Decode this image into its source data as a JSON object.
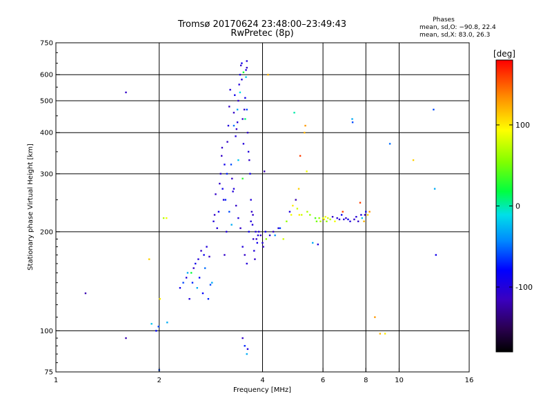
{
  "chart_data": {
    "type": "scatter",
    "title": "Tromsø 20170624 23:48:00–23:49:43",
    "subtitle": "RwPretec (8p)",
    "stats": {
      "heading": "Phases",
      "line1": "mean, sd,O: −90.8, 22.4",
      "line2": "mean, sd,X:  83.0, 26.3"
    },
    "xlabel": "Frequency [MHz]",
    "ylabel": "Stationary phase Virtual Height [km]",
    "x_scale": "log",
    "y_scale": "log",
    "xlim": [
      1,
      16
    ],
    "ylim": [
      75,
      750
    ],
    "x_ticks": [
      1,
      2,
      4,
      6,
      8,
      10,
      16
    ],
    "x_gridlines": [
      2,
      4,
      6,
      8,
      10
    ],
    "y_ticks": [
      75,
      100,
      200,
      300,
      400,
      500,
      600,
      750
    ],
    "y_gridlines": [
      100,
      200,
      300,
      400,
      500,
      600
    ],
    "grid": true,
    "colorbar": {
      "label": "[deg]",
      "range": [
        -180,
        180
      ],
      "ticks": [
        -100,
        0,
        100
      ],
      "colormap": "rainbow"
    },
    "points": [
      [
        1.6,
        530,
        -110
      ],
      [
        1.22,
        130,
        -120
      ],
      [
        1.6,
        95,
        -120
      ],
      [
        1.87,
        165,
        110
      ],
      [
        1.9,
        105,
        -20
      ],
      [
        1.96,
        100,
        -80
      ],
      [
        1.99,
        103,
        -60
      ],
      [
        2.0,
        76,
        -60
      ],
      [
        2.01,
        125,
        100
      ],
      [
        2.06,
        220,
        70
      ],
      [
        2.1,
        220,
        90
      ],
      [
        2.11,
        106,
        -30
      ],
      [
        2.3,
        135,
        -90
      ],
      [
        2.35,
        140,
        -60
      ],
      [
        2.4,
        145,
        -100
      ],
      [
        2.42,
        150,
        -30
      ],
      [
        2.45,
        125,
        -100
      ],
      [
        2.48,
        150,
        20
      ],
      [
        2.5,
        140,
        -70
      ],
      [
        2.52,
        155,
        -110
      ],
      [
        2.55,
        160,
        -90
      ],
      [
        2.58,
        135,
        -30
      ],
      [
        2.6,
        165,
        -100
      ],
      [
        2.62,
        145,
        -80
      ],
      [
        2.65,
        175,
        -110
      ],
      [
        2.68,
        130,
        -80
      ],
      [
        2.7,
        170,
        -90
      ],
      [
        2.72,
        155,
        -50
      ],
      [
        2.75,
        180,
        -100
      ],
      [
        2.78,
        125,
        -70
      ],
      [
        2.8,
        168,
        -110
      ],
      [
        2.82,
        138,
        -60
      ],
      [
        2.85,
        140,
        -30
      ],
      [
        2.88,
        215,
        -100
      ],
      [
        2.9,
        225,
        -110
      ],
      [
        2.92,
        260,
        -110
      ],
      [
        2.95,
        205,
        -100
      ],
      [
        2.98,
        230,
        -90
      ],
      [
        3.0,
        280,
        -110
      ],
      [
        3.02,
        300,
        -100
      ],
      [
        3.04,
        340,
        -110
      ],
      [
        3.06,
        270,
        -90
      ],
      [
        3.08,
        250,
        -100
      ],
      [
        3.1,
        170,
        -110
      ],
      [
        3.12,
        250,
        -70
      ],
      [
        3.14,
        200,
        -100
      ],
      [
        3.16,
        375,
        -110
      ],
      [
        3.18,
        420,
        -100
      ],
      [
        3.2,
        480,
        -110
      ],
      [
        3.22,
        540,
        -100
      ],
      [
        3.24,
        320,
        -60
      ],
      [
        3.26,
        290,
        -110
      ],
      [
        3.28,
        265,
        -100
      ],
      [
        3.3,
        460,
        -110
      ],
      [
        3.32,
        520,
        -90
      ],
      [
        3.34,
        390,
        -100
      ],
      [
        3.36,
        410,
        -110
      ],
      [
        3.38,
        430,
        -100
      ],
      [
        3.4,
        500,
        -110
      ],
      [
        3.42,
        560,
        -100
      ],
      [
        3.44,
        600,
        -90
      ],
      [
        3.46,
        640,
        -110
      ],
      [
        3.48,
        580,
        -100
      ],
      [
        3.5,
        440,
        -110
      ],
      [
        3.52,
        370,
        -100
      ],
      [
        3.54,
        470,
        -110
      ],
      [
        3.56,
        510,
        -90
      ],
      [
        3.58,
        620,
        -100
      ],
      [
        3.6,
        630,
        -110
      ],
      [
        3.62,
        400,
        -110
      ],
      [
        3.64,
        350,
        -100
      ],
      [
        3.66,
        330,
        -110
      ],
      [
        3.68,
        300,
        -90
      ],
      [
        3.7,
        250,
        -100
      ],
      [
        3.72,
        230,
        -110
      ],
      [
        3.74,
        210,
        -100
      ],
      [
        3.76,
        190,
        -110
      ],
      [
        3.78,
        175,
        -100
      ],
      [
        3.8,
        165,
        -110
      ],
      [
        3.82,
        200,
        -100
      ],
      [
        3.84,
        190,
        -110
      ],
      [
        3.86,
        185,
        -90
      ],
      [
        3.88,
        195,
        -100
      ],
      [
        3.3,
        270,
        -100
      ],
      [
        3.35,
        240,
        -110
      ],
      [
        3.4,
        220,
        -100
      ],
      [
        3.45,
        205,
        -110
      ],
      [
        3.5,
        180,
        -100
      ],
      [
        3.55,
        170,
        -110
      ],
      [
        3.6,
        160,
        -100
      ],
      [
        3.65,
        200,
        -90
      ],
      [
        3.7,
        215,
        -100
      ],
      [
        3.75,
        225,
        -110
      ],
      [
        3.2,
        230,
        -60
      ],
      [
        3.25,
        210,
        -30
      ],
      [
        3.15,
        300,
        -70
      ],
      [
        3.1,
        320,
        -90
      ],
      [
        3.05,
        360,
        -110
      ],
      [
        3.5,
        95,
        -110
      ],
      [
        3.55,
        90,
        -70
      ],
      [
        3.6,
        85,
        -30
      ],
      [
        3.62,
        88,
        -100
      ],
      [
        3.48,
        650,
        -90
      ],
      [
        3.6,
        660,
        -100
      ],
      [
        3.52,
        610,
        20
      ],
      [
        3.58,
        590,
        -20
      ],
      [
        3.44,
        530,
        -10
      ],
      [
        3.38,
        470,
        -30
      ],
      [
        3.3,
        420,
        -50
      ],
      [
        3.6,
        470,
        -60
      ],
      [
        3.56,
        440,
        10
      ],
      [
        3.5,
        290,
        30
      ],
      [
        3.4,
        330,
        -20
      ],
      [
        3.9,
        200,
        -100
      ],
      [
        3.95,
        195,
        -110
      ],
      [
        4.0,
        185,
        -100
      ],
      [
        4.02,
        180,
        -110
      ],
      [
        4.05,
        305,
        -120
      ],
      [
        4.08,
        200,
        -90
      ],
      [
        4.1,
        190,
        60
      ],
      [
        4.15,
        600,
        120
      ],
      [
        4.2,
        195,
        -100
      ],
      [
        4.3,
        200,
        -110
      ],
      [
        4.35,
        195,
        -40
      ],
      [
        4.45,
        205,
        -100
      ],
      [
        4.5,
        205,
        -60
      ],
      [
        4.6,
        190,
        80
      ],
      [
        4.7,
        215,
        60
      ],
      [
        4.8,
        230,
        -100
      ],
      [
        4.85,
        225,
        90
      ],
      [
        4.9,
        240,
        100
      ],
      [
        4.95,
        460,
        0
      ],
      [
        5.0,
        250,
        -120
      ],
      [
        5.05,
        235,
        80
      ],
      [
        5.1,
        270,
        110
      ],
      [
        5.12,
        225,
        100
      ],
      [
        5.15,
        340,
        160
      ],
      [
        5.2,
        225,
        80
      ],
      [
        5.3,
        400,
        120
      ],
      [
        5.33,
        420,
        130
      ],
      [
        5.38,
        305,
        90
      ],
      [
        5.4,
        230,
        70
      ],
      [
        5.5,
        225,
        60
      ],
      [
        5.6,
        185,
        -30
      ],
      [
        5.7,
        220,
        40
      ],
      [
        5.75,
        215,
        50
      ],
      [
        5.8,
        183,
        -100
      ],
      [
        5.85,
        220,
        60
      ],
      [
        5.9,
        215,
        70
      ],
      [
        6.0,
        220,
        80
      ],
      [
        6.05,
        218,
        100
      ],
      [
        6.1,
        222,
        90
      ],
      [
        6.15,
        215,
        60
      ],
      [
        6.2,
        220,
        80
      ],
      [
        6.3,
        218,
        70
      ],
      [
        6.4,
        222,
        -110
      ],
      [
        6.5,
        215,
        90
      ],
      [
        6.6,
        220,
        -100
      ],
      [
        6.7,
        218,
        -110
      ],
      [
        6.8,
        225,
        -90
      ],
      [
        6.85,
        230,
        160
      ],
      [
        6.9,
        218,
        -100
      ],
      [
        7.0,
        220,
        -110
      ],
      [
        7.1,
        218,
        -90
      ],
      [
        7.2,
        215,
        -100
      ],
      [
        7.3,
        440,
        -30
      ],
      [
        7.32,
        430,
        -60
      ],
      [
        7.4,
        218,
        -110
      ],
      [
        7.5,
        222,
        -100
      ],
      [
        7.6,
        215,
        -110
      ],
      [
        7.7,
        245,
        160
      ],
      [
        7.75,
        225,
        -100
      ],
      [
        7.8,
        220,
        -20
      ],
      [
        7.9,
        215,
        120
      ],
      [
        7.95,
        225,
        -110
      ],
      [
        8.0,
        230,
        -90
      ],
      [
        8.1,
        225,
        110
      ],
      [
        8.2,
        230,
        130
      ],
      [
        8.5,
        110,
        130
      ],
      [
        8.8,
        98,
        120
      ],
      [
        9.1,
        98,
        100
      ],
      [
        9.4,
        370,
        -50
      ],
      [
        11.0,
        330,
        110
      ],
      [
        12.6,
        470,
        -60
      ],
      [
        12.7,
        270,
        -30
      ],
      [
        12.8,
        170,
        -90
      ]
    ]
  }
}
